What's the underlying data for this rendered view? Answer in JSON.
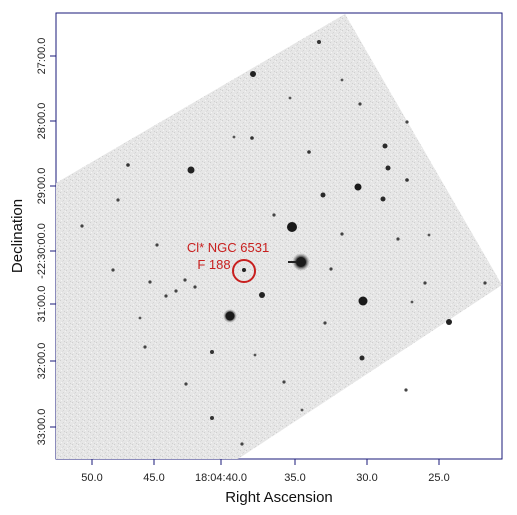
{
  "axes": {
    "xlabel": "Right Ascension",
    "ylabel": "Declination",
    "x_ticks": [
      "50.0",
      "45.0",
      "18:04:40.0",
      "35.0",
      "30.0",
      "25.0"
    ],
    "y_ticks": [
      "27:00.0",
      "28:00.0",
      "29:00.0",
      "-22:30:00.0",
      "31:00.0",
      "32:00.0",
      "33:00.0"
    ]
  },
  "target": {
    "label_line1": "Cl* NGC 6531",
    "label_line2": "F 188"
  },
  "colors": {
    "frame": "#1a1a7a",
    "annotation": "#c8201f",
    "sky_background": "#e9e9e9",
    "star": "#2a2a2a"
  }
}
